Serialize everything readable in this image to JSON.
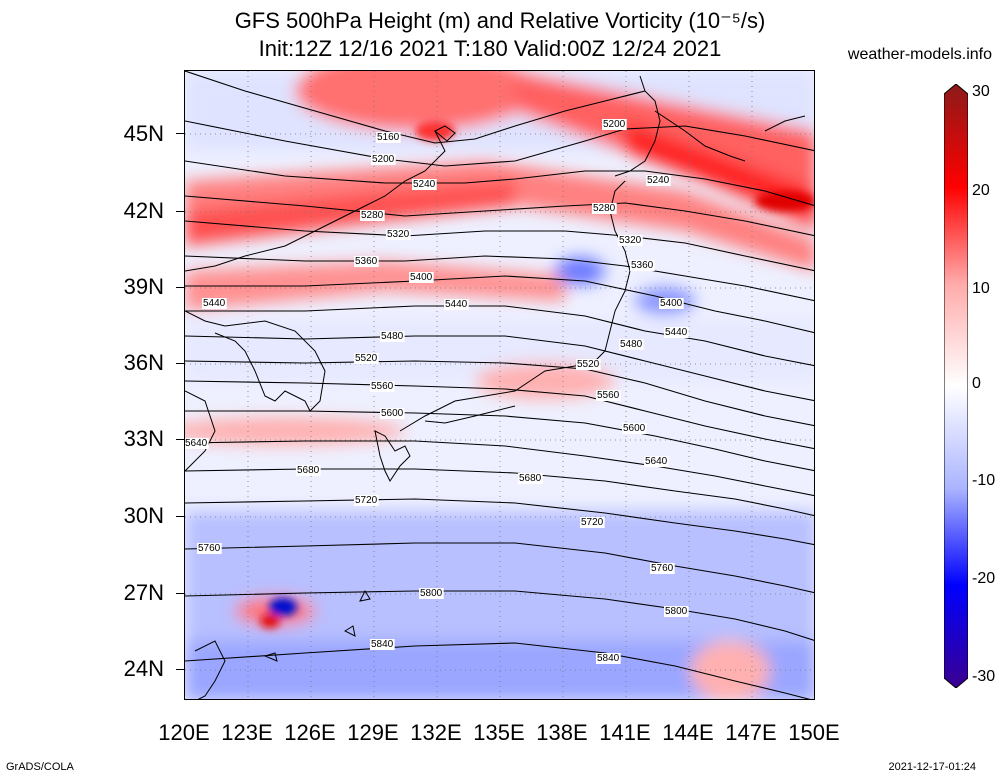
{
  "title_line1": "GFS 500hPa Height (m) and Relative Vorticity (10⁻⁵/s)",
  "title_line2": "Init:12Z 12/16 2021 T:180 Valid:00Z 12/24 2021",
  "site": "weather-models.info",
  "footer_left": "GrADS/COLA",
  "footer_right": "2021-12-17-01:24",
  "lat_labels": [
    "45N",
    "42N",
    "39N",
    "36N",
    "33N",
    "30N",
    "27N",
    "24N"
  ],
  "lon_labels": [
    "120E",
    "123E",
    "126E",
    "129E",
    "132E",
    "135E",
    "138E",
    "141E",
    "144E",
    "147E",
    "150E"
  ],
  "colorbar": {
    "labels": [
      "30",
      "20",
      "10",
      "0",
      "-10",
      "-20",
      "-30"
    ],
    "colors": [
      "#8b1a1a",
      "#ff0000",
      "#ffaaaa",
      "#ffffff",
      "#aab4ff",
      "#0000ff",
      "#3a0090"
    ]
  },
  "contours": [
    {
      "value": "5160",
      "label": "5160"
    },
    {
      "value": "5200",
      "label": "5200"
    },
    {
      "value": "5240",
      "label": "5240"
    },
    {
      "value": "5280",
      "label": "5280"
    },
    {
      "value": "5320",
      "label": "5320"
    },
    {
      "value": "5360",
      "label": "5360"
    },
    {
      "value": "5400",
      "label": "5400"
    },
    {
      "value": "5440",
      "label": "5440"
    },
    {
      "value": "5480",
      "label": "5480"
    },
    {
      "value": "5520",
      "label": "5520"
    },
    {
      "value": "5560",
      "label": "5560"
    },
    {
      "value": "5600",
      "label": "5600"
    },
    {
      "value": "5640",
      "label": "5640"
    },
    {
      "value": "5680",
      "label": "5680"
    },
    {
      "value": "5720",
      "label": "5720"
    },
    {
      "value": "5760",
      "label": "5760"
    },
    {
      "value": "5800",
      "label": "5800"
    },
    {
      "value": "5840",
      "label": "5840"
    }
  ]
}
